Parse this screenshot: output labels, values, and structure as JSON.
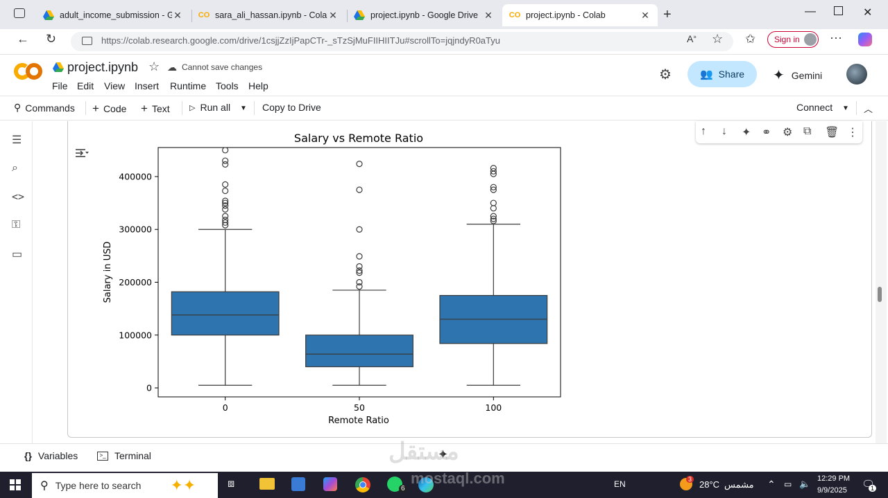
{
  "browser": {
    "tabs": [
      {
        "label": "adult_income_submission - Googl",
        "icon": "google-drive-icon",
        "active": false
      },
      {
        "label": "sara_ali_hassan.ipynb - Colab",
        "icon": "colab-icon",
        "active": false
      },
      {
        "label": "project.ipynb - Google Drive",
        "icon": "google-drive-icon",
        "active": false
      },
      {
        "label": "project.ipynb - Colab",
        "icon": "colab-icon",
        "active": true
      }
    ],
    "url": "https://colab.research.google.com/drive/1csjjZzIjPapCTr-_sTzSjMuFIIHIITJu#scrollTo=jqjndyR0aTyu",
    "sign_in_label": "Sign in"
  },
  "colab": {
    "file_title": "project.ipynb",
    "save_status": "Cannot save changes",
    "menu": [
      "File",
      "Edit",
      "View",
      "Insert",
      "Runtime",
      "Tools",
      "Help"
    ],
    "share_label": "Share",
    "gemini_label": "Gemini",
    "toolbar": {
      "commands": "Commands",
      "code": "Code",
      "text": "Text",
      "run_all": "Run all",
      "copy_to_drive": "Copy to Drive",
      "connect": "Connect"
    },
    "bottom": {
      "variables": "Variables",
      "terminal": "Terminal"
    },
    "colors": {
      "accent": "#c2e7ff",
      "box_fill": "#2e75b0"
    }
  },
  "chart_data": {
    "type": "boxplot",
    "title": "Salary vs Remote Ratio",
    "xlabel": "Remote Ratio",
    "ylabel": "Salary in USD",
    "categories": [
      "0",
      "50",
      "100"
    ],
    "ylim": [
      -17000,
      455000
    ],
    "yticks": [
      0,
      100000,
      200000,
      300000,
      400000
    ],
    "ytick_labels": [
      "0",
      "100000",
      "200000",
      "300000",
      "400000"
    ],
    "boxes": [
      {
        "category": "0",
        "q1": 100000,
        "median": 138000,
        "q3": 182000,
        "whisker_low": 5000,
        "whisker_high": 300000,
        "outliers": [
          308000,
          313000,
          318000,
          325000,
          338000,
          345000,
          350000,
          354000,
          373000,
          385000,
          423000,
          430000,
          450000
        ]
      },
      {
        "category": "50",
        "q1": 40000,
        "median": 64000,
        "q3": 100000,
        "whisker_low": 5000,
        "whisker_high": 185000,
        "outliers": [
          192000,
          200000,
          218000,
          222000,
          230000,
          249000,
          300000,
          375000,
          424000
        ]
      },
      {
        "category": "100",
        "q1": 84000,
        "median": 130000,
        "q3": 175000,
        "whisker_low": 5000,
        "whisker_high": 310000,
        "outliers": [
          316000,
          320000,
          325000,
          340000,
          350000,
          375000,
          380000,
          405000,
          410000,
          416000
        ]
      }
    ],
    "grid": false,
    "color": "#2e75b0"
  },
  "taskbar": {
    "search_placeholder": "Type here to search",
    "language": "EN",
    "temperature": "28°C",
    "weather_text": "مشمس",
    "time": "12:29 PM",
    "date": "9/9/2025",
    "whatsapp_badge": "6",
    "notification_count": "1",
    "weather_badge": "3"
  },
  "watermark": {
    "text_ar": "مستقل",
    "text_en": "mostaql.com"
  }
}
